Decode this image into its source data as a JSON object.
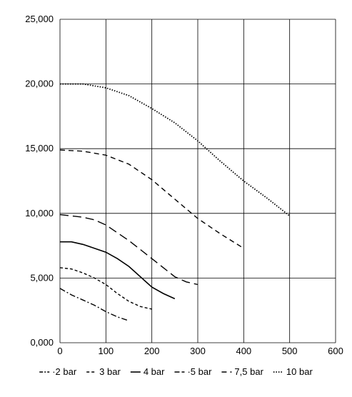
{
  "chart_data": {
    "type": "line",
    "title": "",
    "xlabel": "",
    "ylabel": "",
    "xlim": [
      0,
      600
    ],
    "ylim": [
      0,
      25
    ],
    "x_ticks": [
      "0",
      "100",
      "200",
      "300",
      "400",
      "500",
      "600"
    ],
    "y_ticks": [
      "0,000",
      "5,000",
      "10,000",
      "15,000",
      "20,000",
      "25,000"
    ],
    "grid": true,
    "legend_position": "bottom",
    "series": [
      {
        "name": "2 bar",
        "legend_label": "·2 bar",
        "dash": "dashdot",
        "points": [
          [
            0,
            4.2
          ],
          [
            25,
            3.7
          ],
          [
            50,
            3.3
          ],
          [
            75,
            2.9
          ],
          [
            100,
            2.4
          ],
          [
            125,
            2.0
          ],
          [
            150,
            1.7
          ]
        ]
      },
      {
        "name": "3 bar",
        "legend_label": "3 bar",
        "dash": "short",
        "points": [
          [
            0,
            5.8
          ],
          [
            25,
            5.7
          ],
          [
            50,
            5.4
          ],
          [
            75,
            5.0
          ],
          [
            100,
            4.5
          ],
          [
            125,
            3.8
          ],
          [
            150,
            3.2
          ],
          [
            175,
            2.8
          ],
          [
            200,
            2.6
          ]
        ]
      },
      {
        "name": "4 bar",
        "legend_label": "4 bar",
        "dash": "solid",
        "points": [
          [
            0,
            7.8
          ],
          [
            25,
            7.8
          ],
          [
            50,
            7.6
          ],
          [
            75,
            7.3
          ],
          [
            100,
            7.0
          ],
          [
            125,
            6.5
          ],
          [
            150,
            5.9
          ],
          [
            175,
            5.1
          ],
          [
            200,
            4.3
          ],
          [
            225,
            3.8
          ],
          [
            250,
            3.4
          ]
        ]
      },
      {
        "name": "5 bar",
        "legend_label": "·5 bar",
        "dash": "long",
        "points": [
          [
            0,
            9.9
          ],
          [
            25,
            9.8
          ],
          [
            50,
            9.7
          ],
          [
            75,
            9.5
          ],
          [
            100,
            9.1
          ],
          [
            125,
            8.5
          ],
          [
            150,
            7.9
          ],
          [
            175,
            7.2
          ],
          [
            200,
            6.5
          ],
          [
            225,
            5.8
          ],
          [
            250,
            5.1
          ],
          [
            275,
            4.7
          ],
          [
            300,
            4.5
          ]
        ]
      },
      {
        "name": "7,5 bar",
        "legend_label": "7,5 bar",
        "dash": "medium",
        "points": [
          [
            0,
            14.9
          ],
          [
            50,
            14.8
          ],
          [
            100,
            14.5
          ],
          [
            150,
            13.8
          ],
          [
            200,
            12.6
          ],
          [
            250,
            11.1
          ],
          [
            300,
            9.6
          ],
          [
            350,
            8.4
          ],
          [
            400,
            7.3
          ]
        ]
      },
      {
        "name": "10 bar",
        "legend_label": "10 bar",
        "dash": "dotted",
        "points": [
          [
            0,
            20.0
          ],
          [
            50,
            20.0
          ],
          [
            100,
            19.7
          ],
          [
            150,
            19.1
          ],
          [
            200,
            18.1
          ],
          [
            250,
            17.0
          ],
          [
            300,
            15.6
          ],
          [
            350,
            14.0
          ],
          [
            400,
            12.5
          ],
          [
            450,
            11.2
          ],
          [
            500,
            9.8
          ]
        ]
      }
    ]
  }
}
